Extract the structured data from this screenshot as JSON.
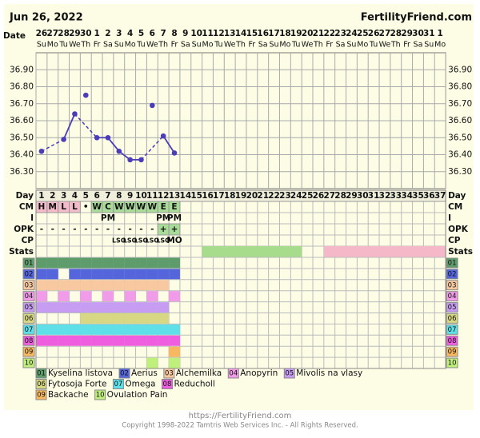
{
  "header": {
    "date": "Jun 26, 2022",
    "site": "FertilityFriend.com"
  },
  "chart_data": {
    "type": "line",
    "x_label": "Date",
    "categories": [
      "26",
      "27",
      "28",
      "29",
      "30",
      "1",
      "2",
      "3",
      "4",
      "5",
      "6",
      "7",
      "8",
      "9",
      "10",
      "11",
      "12",
      "13",
      "14",
      "15",
      "16",
      "17",
      "18",
      "19",
      "20",
      "21",
      "22",
      "23",
      "24",
      "25",
      "26",
      "27",
      "28",
      "29",
      "30",
      "31",
      "1"
    ],
    "weekdays": [
      "Su",
      "Mo",
      "Tu",
      "We",
      "Th",
      "Fr",
      "Sa",
      "Su",
      "Mo",
      "Tu",
      "We",
      "Th",
      "Fr",
      "Sa",
      "Su",
      "Mo",
      "Tu",
      "We",
      "Th",
      "Fr",
      "Sa",
      "Su",
      "Mo",
      "Tu",
      "We",
      "Th",
      "Fr",
      "Sa",
      "Su",
      "Mo",
      "Tu",
      "We",
      "Th",
      "Fr",
      "Sa",
      "Su",
      "Mo"
    ],
    "cycle_day_label": "Day",
    "cycle_days": [
      1,
      2,
      3,
      4,
      5,
      6,
      7,
      8,
      9,
      10,
      11,
      12,
      13,
      14,
      15,
      16,
      17,
      18,
      19,
      20,
      21,
      22,
      23,
      24,
      25,
      26,
      27,
      28,
      29,
      30,
      31,
      32,
      33,
      34,
      35,
      36,
      37
    ],
    "values": [
      36.42,
      null,
      36.49,
      36.64,
      null,
      36.5,
      36.5,
      36.42,
      36.37,
      36.37,
      null,
      36.51,
      36.41,
      null,
      null,
      null,
      null,
      null,
      null,
      null,
      null,
      null,
      null,
      null,
      null,
      null,
      null,
      null,
      null,
      null,
      null,
      null,
      null,
      null,
      null,
      null,
      null
    ],
    "excluded_values": [
      null,
      null,
      null,
      null,
      36.75,
      null,
      null,
      null,
      null,
      null,
      36.69,
      null,
      null,
      null,
      null,
      null,
      null,
      null,
      null,
      null,
      null,
      null,
      null,
      null,
      null,
      null,
      null,
      null,
      null,
      null,
      null,
      null,
      null,
      null,
      null,
      null,
      null
    ],
    "color": "#4b3db8",
    "ylim": [
      36.2,
      37.0
    ],
    "yticks": [
      {
        "value": 36.3,
        "label": "36.30"
      },
      {
        "value": 36.4,
        "label": "36.40"
      },
      {
        "value": 36.5,
        "label": "36.50"
      },
      {
        "value": 36.6,
        "label": "36.60"
      },
      {
        "value": 36.7,
        "label": "36.70"
      },
      {
        "value": 36.8,
        "label": "36.80"
      },
      {
        "value": 36.9,
        "label": "36.90"
      }
    ],
    "grid": true
  },
  "rows": [
    {
      "label": "CM",
      "cells": [
        {
          "day": 1,
          "text": "H",
          "color": "#f4bccb"
        },
        {
          "day": 2,
          "text": "M",
          "color": "#f4bccb"
        },
        {
          "day": 3,
          "text": "L",
          "color": "#f4bccb"
        },
        {
          "day": 4,
          "text": "L",
          "color": "#f4bccb"
        },
        {
          "day": 5,
          "text": "•"
        },
        {
          "day": 6,
          "text": "W",
          "color": "#a8dc98"
        },
        {
          "day": 7,
          "text": "C",
          "color": "#a8dc98"
        },
        {
          "day": 8,
          "text": "W",
          "color": "#a8dc98"
        },
        {
          "day": 9,
          "text": "W",
          "color": "#a8dc98"
        },
        {
          "day": 10,
          "text": "W",
          "color": "#a8dc98"
        },
        {
          "day": 11,
          "text": "W",
          "color": "#a8dc98"
        },
        {
          "day": 12,
          "text": "E",
          "color": "#a8dc98"
        },
        {
          "day": 13,
          "text": "E",
          "color": "#a8dc98"
        }
      ]
    },
    {
      "label": "I",
      "cells": [
        {
          "day": 7,
          "text": "PM"
        },
        {
          "day": 12,
          "text": "PM"
        },
        {
          "day": 13,
          "text": "PM"
        }
      ]
    },
    {
      "label": "OPK",
      "cells": [
        {
          "day": 1,
          "text": "-"
        },
        {
          "day": 2,
          "text": "-"
        },
        {
          "day": 3,
          "text": "-"
        },
        {
          "day": 4,
          "text": "-"
        },
        {
          "day": 5,
          "text": "-"
        },
        {
          "day": 6,
          "text": "-"
        },
        {
          "day": 7,
          "text": "-"
        },
        {
          "day": 8,
          "text": "-"
        },
        {
          "day": 9,
          "text": "-"
        },
        {
          "day": 10,
          "text": "-"
        },
        {
          "day": 11,
          "text": "-"
        },
        {
          "day": 12,
          "text": "+",
          "color": "#a8dc98"
        },
        {
          "day": 13,
          "text": "+",
          "color": "#a8dc98"
        }
      ]
    },
    {
      "label": "CP",
      "cells": [
        {
          "day": 8,
          "text": "LSO"
        },
        {
          "day": 9,
          "text": "LSO"
        },
        {
          "day": 10,
          "text": "LSO"
        },
        {
          "day": 11,
          "text": "LSO"
        },
        {
          "day": 12,
          "text": "LSO"
        },
        {
          "day": 13,
          "text": "MO"
        }
      ]
    }
  ],
  "stats": {
    "label": "Stats",
    "spans": [
      {
        "start": 16,
        "end": 24,
        "color": "#a6dc8c"
      },
      {
        "start": 27,
        "end": 37,
        "color": "#f4b8c8"
      }
    ]
  },
  "meds": [
    {
      "code": "01",
      "name": "Kyselina listova",
      "color": "#5e9c6c",
      "days": [
        1,
        2,
        3,
        4,
        5,
        6,
        7,
        8,
        9,
        10,
        11,
        12,
        13
      ]
    },
    {
      "code": "02",
      "name": "Aerius",
      "color": "#5566dd",
      "days": [
        1,
        2,
        4,
        5,
        6,
        7,
        8,
        9,
        10,
        11,
        12,
        13
      ]
    },
    {
      "code": "03",
      "name": "Alchemilka",
      "color": "#f8c8a0",
      "days": [
        1,
        2,
        3,
        4,
        5,
        6,
        7,
        8,
        9,
        10,
        11,
        12
      ]
    },
    {
      "code": "04",
      "name": "Anopyrin",
      "color": "#f19ce8",
      "days": [
        1,
        3,
        5,
        7,
        9,
        11,
        13
      ]
    },
    {
      "code": "05",
      "name": "Mivolis na vlasy",
      "color": "#c69df2",
      "days": [
        1,
        2,
        3,
        4,
        5,
        6,
        7,
        8,
        9,
        10,
        11,
        12
      ]
    },
    {
      "code": "06",
      "name": "Fytosoja Forte",
      "color": "#d8d884",
      "days": [
        5,
        6,
        7,
        8,
        9,
        10,
        11,
        12
      ]
    },
    {
      "code": "07",
      "name": "Omega",
      "color": "#5fe0e8",
      "days": [
        1,
        2,
        3,
        4,
        5,
        6,
        7,
        8,
        9,
        10,
        11,
        12,
        13
      ]
    },
    {
      "code": "08",
      "name": "Reducholl",
      "color": "#f05ee0",
      "days": [
        1,
        2,
        3,
        4,
        5,
        6,
        7,
        8,
        9,
        10,
        11,
        12,
        13
      ]
    },
    {
      "code": "09",
      "name": "Backache",
      "color": "#f8b860",
      "days": [
        13
      ]
    },
    {
      "code": "10",
      "name": "Ovulation Pain",
      "color": "#c0f07c",
      "days": [
        11,
        13
      ]
    }
  ],
  "footer": {
    "url": "https://FertilityFriend.com",
    "copyright": "Copyright 1998-2022 Tamtris Web Services Inc. - All Rights Reserved."
  }
}
